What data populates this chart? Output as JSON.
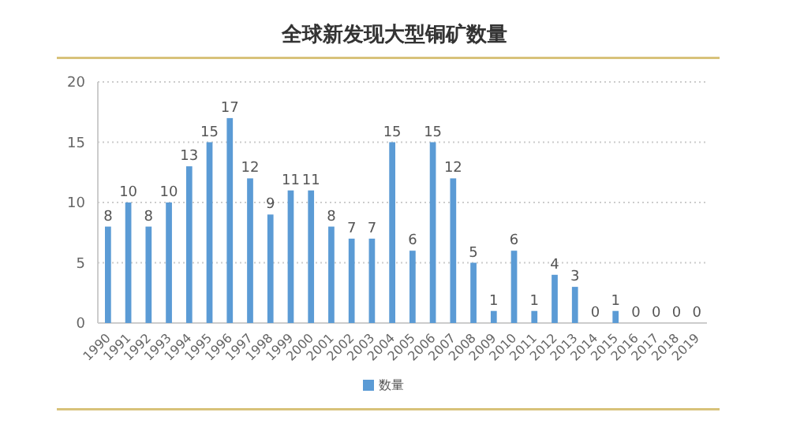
{
  "chart_data": {
    "type": "bar",
    "title": "全球新发现大型铜矿数量",
    "categories": [
      "1990",
      "1991",
      "1992",
      "1993",
      "1994",
      "1995",
      "1996",
      "1997",
      "1998",
      "1999",
      "2000",
      "2001",
      "2002",
      "2003",
      "2004",
      "2005",
      "2006",
      "2007",
      "2008",
      "2009",
      "2010",
      "2011",
      "2012",
      "2013",
      "2014",
      "2015",
      "2016",
      "2017",
      "2018",
      "2019"
    ],
    "series": [
      {
        "name": "数量",
        "color": "#5b9bd5",
        "values": [
          8,
          10,
          8,
          10,
          13,
          15,
          17,
          12,
          9,
          11,
          11,
          8,
          7,
          7,
          15,
          6,
          15,
          12,
          5,
          1,
          6,
          1,
          4,
          3,
          0,
          1,
          0,
          0,
          0,
          0
        ]
      }
    ],
    "ylim": [
      0,
      20
    ],
    "yticks": [
      0,
      5,
      10,
      15,
      20
    ],
    "grid": "y",
    "legend": "bottom",
    "data_labels": true
  }
}
